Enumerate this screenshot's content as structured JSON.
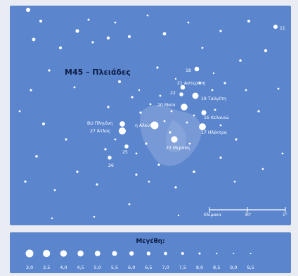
{
  "title": "M45 – Πλειάδες",
  "stars": [
    {
      "label": "18",
      "mag": 5.8
    },
    {
      "label": "21 Αστερόπη",
      "mag": 5.8
    },
    {
      "label": "22",
      "mag": 6.4
    },
    {
      "label": "19 Ταϋγέτη",
      "mag": 4.3
    },
    {
      "label": "20 Μαία",
      "mag": 3.9
    },
    {
      "label": "16 Κελαινώ",
      "mag": 5.4
    },
    {
      "label": "17 Ηλέκτρα",
      "mag": 3.7
    },
    {
      "label": "η Αλκυόνη",
      "mag": 2.9
    },
    {
      "label": "23 Μερόπη",
      "mag": 4.1
    },
    {
      "label": "BU Πληιόνη",
      "mag": 5.1
    },
    {
      "label": "27 Άτλας",
      "mag": 3.6
    },
    {
      "label": "25",
      "mag": 6.3
    },
    {
      "label": "26",
      "mag": 6.5
    },
    {
      "label": "11",
      "mag": 6.1
    }
  ],
  "scale": {
    "label": "Κλίμακα",
    "ticks": [
      "",
      "30'",
      "1°"
    ]
  },
  "legend": {
    "title": "Μεγέθη:",
    "magnitudes": [
      "3,0",
      "3,5",
      "4,0",
      "4,5",
      "5,0",
      "5,5",
      "6,0",
      "6,5",
      "7,0",
      "7,5",
      "8,0",
      "8,5",
      "9,0",
      "9,5"
    ]
  },
  "colors": {
    "sky": "#5b86ce",
    "star": "#ffffff",
    "label": "#ffffff",
    "title": "#0e1c45",
    "nebula": "#8fa9de"
  }
}
